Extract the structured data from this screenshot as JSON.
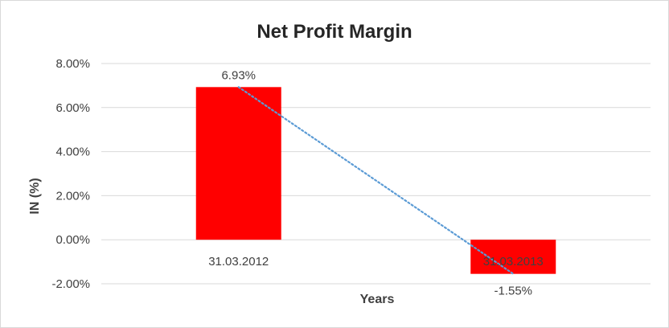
{
  "chart_data": {
    "type": "bar",
    "title": "Net Profit Margin",
    "xlabel": "Years",
    "ylabel": "IN (%)",
    "categories": [
      "31.03.2012",
      "31.03.2013"
    ],
    "values": [
      6.93,
      -1.55
    ],
    "data_labels": [
      "6.93%",
      "-1.55%"
    ],
    "ylim": [
      -2,
      8
    ],
    "y_ticks": [
      8,
      6,
      4,
      2,
      0,
      -2
    ],
    "y_tick_labels": [
      "8.00%",
      "6.00%",
      "4.00%",
      "2.00%",
      "0.00%",
      "-2.00%"
    ],
    "bar_color": "#ff0000",
    "trendline": {
      "type": "linear",
      "style": "dotted",
      "color": "#5b9bd5"
    },
    "grid": true,
    "legend": "none"
  }
}
